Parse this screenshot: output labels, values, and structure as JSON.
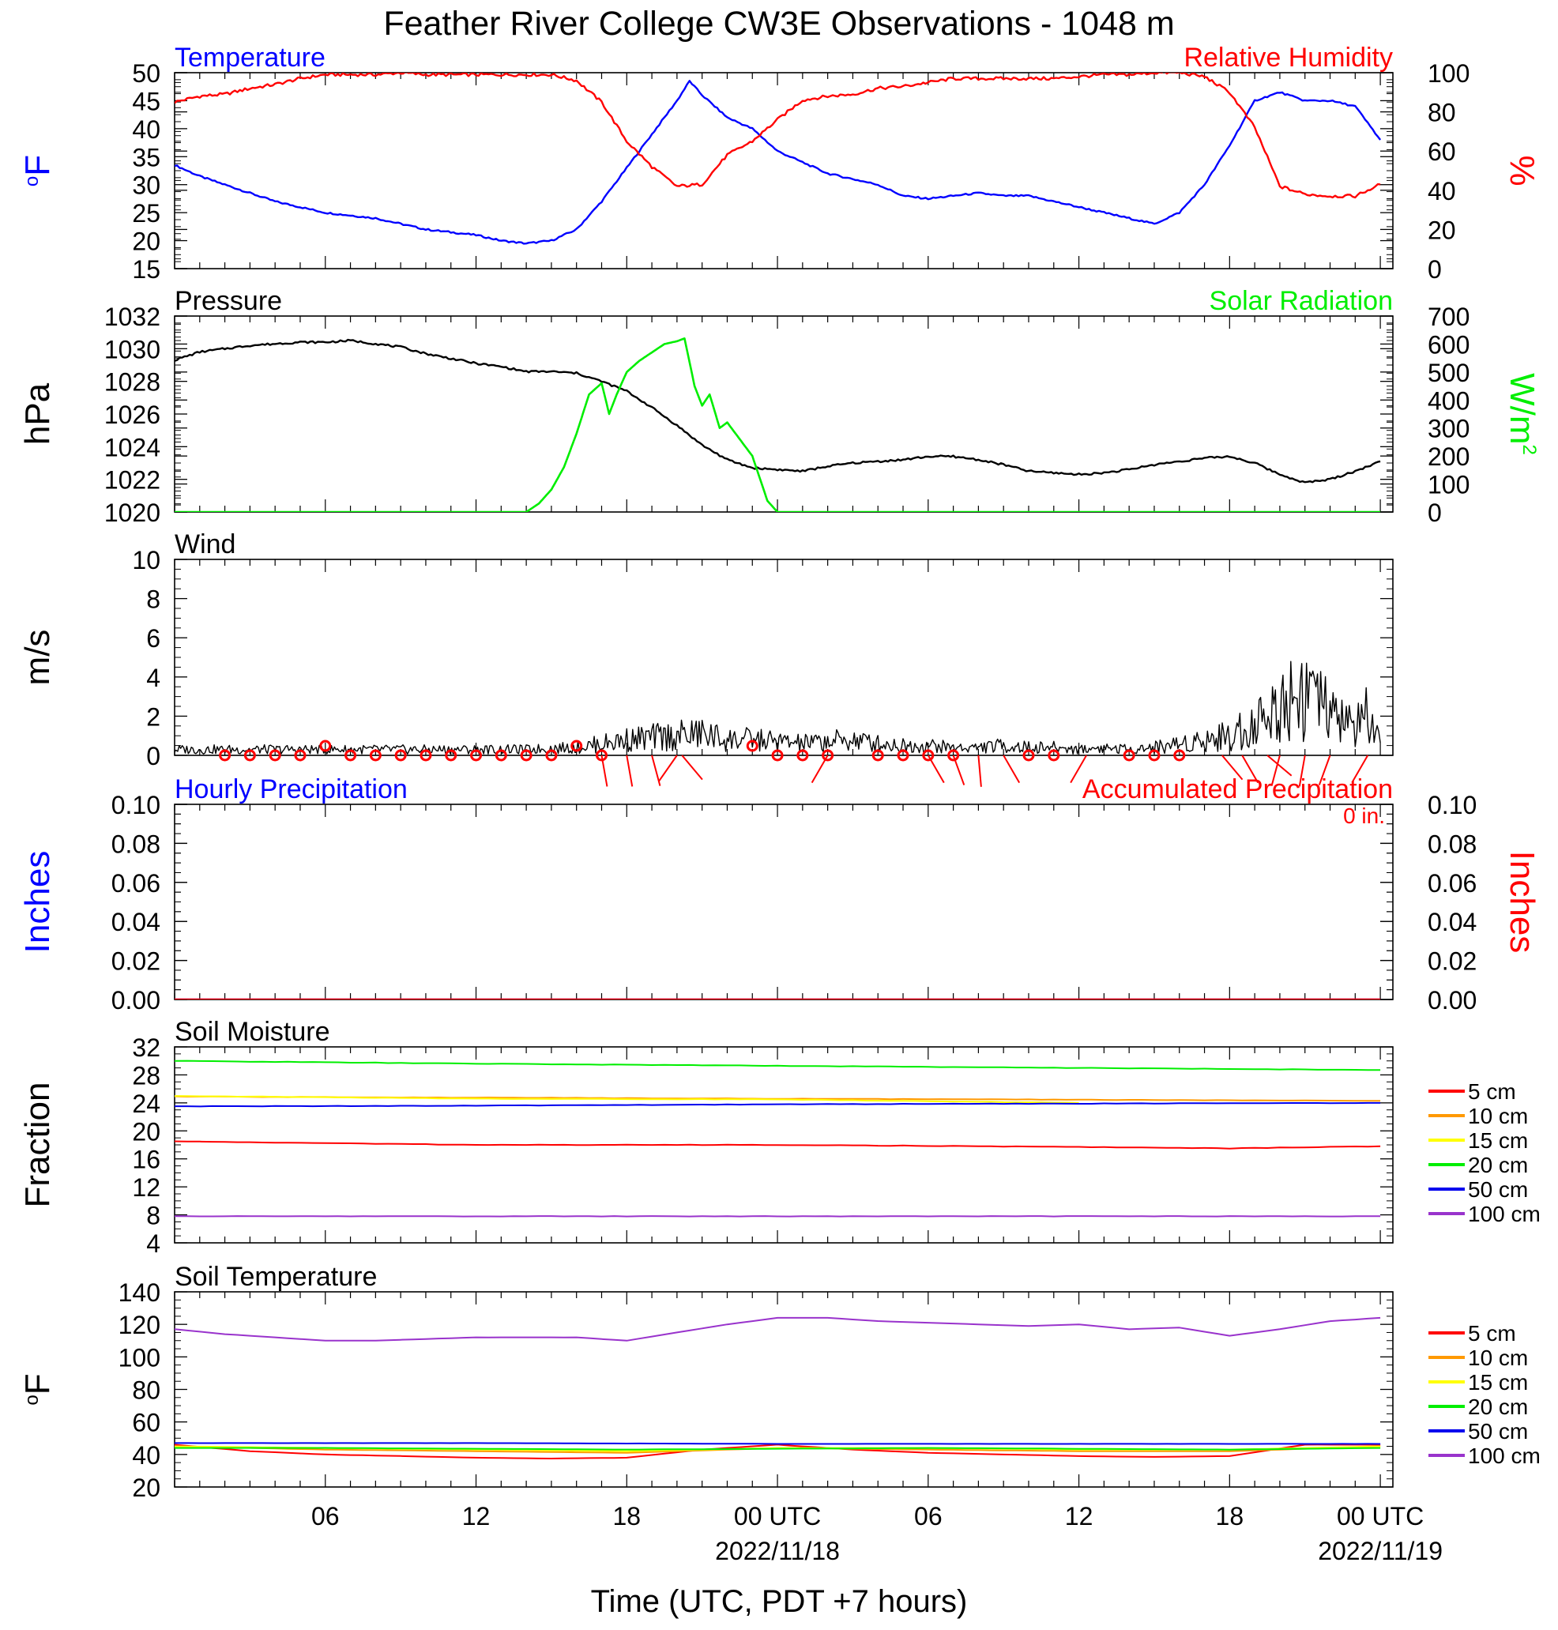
{
  "title": "Feather River College CW3E Observations - 1048 m",
  "xlabel": "Time (UTC, PDT +7 hours)",
  "x_ticks": [
    {
      "h": 6,
      "label": "06",
      "date": ""
    },
    {
      "h": 12,
      "label": "12",
      "date": ""
    },
    {
      "h": 18,
      "label": "18",
      "date": ""
    },
    {
      "h": 24,
      "label": "00 UTC",
      "date": "2022/11/18"
    },
    {
      "h": 30,
      "label": "06",
      "date": ""
    },
    {
      "h": 36,
      "label": "12",
      "date": ""
    },
    {
      "h": 42,
      "label": "18",
      "date": ""
    },
    {
      "h": 48,
      "label": "00 UTC",
      "date": "2022/11/19"
    }
  ],
  "colors": {
    "temperature": "#0000ff",
    "humidity": "#ff0000",
    "pressure": "#000000",
    "solar": "#00ee00",
    "wind": "#000000",
    "barb": "#ff0000",
    "precip_left": "#0000ff",
    "precip_right": "#ff0000"
  },
  "soil_legend": [
    {
      "label": "5 cm",
      "color": "#ff0000"
    },
    {
      "label": "10 cm",
      "color": "#ff9900"
    },
    {
      "label": "15 cm",
      "color": "#ffff00"
    },
    {
      "label": "20 cm",
      "color": "#00ee00"
    },
    {
      "label": "50 cm",
      "color": "#0000ee"
    },
    {
      "label": "100 cm",
      "color": "#9933cc"
    }
  ],
  "chart_data": [
    {
      "type": "line",
      "panel": "temperature_humidity",
      "left_title": "Temperature",
      "right_title": "Relative Humidity",
      "ylabel_left": "oF",
      "ylabel_right": "%",
      "ylim_left": [
        15,
        50
      ],
      "yticks_left": [
        15,
        20,
        25,
        30,
        35,
        40,
        45,
        50
      ],
      "ylim_right": [
        0,
        100
      ],
      "yticks_right": [
        0,
        20,
        40,
        60,
        80,
        100
      ],
      "series": [
        {
          "name": "Temperature",
          "axis": "left",
          "color_key": "temperature",
          "x": [
            0,
            1,
            2,
            3,
            4,
            5,
            6,
            7,
            8,
            9,
            10,
            11,
            12,
            13,
            14,
            15,
            16,
            17,
            18,
            19,
            20,
            20.5,
            21,
            22,
            23,
            24,
            25,
            26,
            27,
            28,
            29,
            30,
            31,
            32,
            33,
            34,
            35,
            36,
            37,
            38,
            39,
            40,
            41,
            42,
            43,
            44,
            45,
            46,
            47,
            48
          ],
          "y": [
            33.5,
            31.5,
            30,
            28.5,
            27,
            26,
            25,
            24.5,
            24,
            23,
            22,
            21.5,
            21,
            20,
            19.5,
            20,
            22,
            27,
            33,
            39,
            45,
            48.5,
            46,
            42,
            40,
            36,
            34,
            32,
            31,
            30,
            28,
            27.5,
            28,
            28.5,
            28,
            28,
            27,
            26,
            25,
            24,
            23,
            25,
            30,
            37,
            45,
            46.5,
            45,
            45,
            44,
            38
          ]
        },
        {
          "name": "Relative Humidity",
          "axis": "right",
          "color_key": "humidity",
          "x": [
            0,
            1,
            2,
            3,
            4,
            5,
            6,
            7,
            8,
            9,
            10,
            11,
            12,
            13,
            14,
            15,
            16,
            17,
            18,
            19,
            20,
            21,
            22,
            23,
            24,
            25,
            26,
            27,
            28,
            29,
            30,
            31,
            32,
            33,
            34,
            35,
            36,
            37,
            38,
            39,
            40,
            41,
            42,
            43,
            44,
            45,
            46,
            47,
            48
          ],
          "y": [
            85,
            88,
            89,
            92,
            94,
            97,
            99,
            99,
            99,
            100,
            99,
            99,
            99,
            99,
            99,
            99,
            96,
            85,
            65,
            52,
            42,
            43,
            58,
            65,
            76,
            86,
            88,
            89,
            92,
            93,
            95,
            97,
            97,
            97,
            97,
            97,
            98,
            99,
            99,
            100,
            100,
            98,
            90,
            72,
            42,
            38,
            37,
            37,
            43
          ]
        }
      ]
    },
    {
      "type": "line",
      "panel": "pressure_solar",
      "left_title": "Pressure",
      "right_title": "Solar Radiation",
      "ylabel_left": "hPa",
      "ylabel_right": "W/m",
      "ylabel_right_sup": "2",
      "ylim_left": [
        1020,
        1032
      ],
      "yticks_left": [
        1020,
        1022,
        1024,
        1026,
        1028,
        1030,
        1032
      ],
      "ylim_right": [
        0,
        700
      ],
      "yticks_right": [
        0,
        100,
        200,
        300,
        400,
        500,
        600,
        700
      ],
      "series": [
        {
          "name": "Pressure",
          "axis": "left",
          "color_key": "pressure",
          "x": [
            0,
            1,
            2,
            3,
            4,
            5,
            6,
            7,
            8,
            9,
            10,
            11,
            12,
            13,
            14,
            15,
            16,
            17,
            18,
            19,
            20,
            21,
            22,
            23,
            24,
            25,
            26,
            27,
            28,
            29,
            30,
            31,
            32,
            33,
            34,
            35,
            36,
            37,
            38,
            39,
            40,
            41,
            42,
            43,
            44,
            45,
            46,
            47,
            48
          ],
          "y": [
            1029.3,
            1029.8,
            1030.0,
            1030.2,
            1030.3,
            1030.4,
            1030.4,
            1030.5,
            1030.3,
            1030.1,
            1029.7,
            1029.4,
            1029.1,
            1028.9,
            1028.6,
            1028.6,
            1028.5,
            1028.0,
            1027.4,
            1026.4,
            1025.3,
            1024.1,
            1023.2,
            1022.7,
            1022.6,
            1022.5,
            1022.8,
            1023.0,
            1023.1,
            1023.2,
            1023.4,
            1023.4,
            1023.2,
            1022.9,
            1022.5,
            1022.4,
            1022.3,
            1022.4,
            1022.6,
            1022.9,
            1023.1,
            1023.3,
            1023.4,
            1023.0,
            1022.3,
            1021.8,
            1022.0,
            1022.5,
            1023.1
          ]
        },
        {
          "name": "Solar Radiation",
          "axis": "right",
          "color_key": "solar",
          "x": [
            0,
            14,
            14.5,
            15,
            15.5,
            16,
            16.5,
            17,
            17.3,
            17.6,
            18,
            18.5,
            19,
            19.5,
            20,
            20.3,
            20.7,
            21,
            21.3,
            21.7,
            22,
            22.5,
            23,
            23.3,
            23.6,
            24,
            48
          ],
          "y": [
            0,
            0,
            30,
            80,
            160,
            280,
            420,
            460,
            350,
            420,
            500,
            540,
            570,
            600,
            610,
            620,
            450,
            380,
            420,
            300,
            320,
            260,
            200,
            120,
            40,
            0,
            0
          ]
        }
      ]
    },
    {
      "type": "line",
      "panel": "wind",
      "left_title": "Wind",
      "ylabel_left": "m/s",
      "ylim_left": [
        0,
        10
      ],
      "yticks_left": [
        0,
        2,
        4,
        6,
        8,
        10
      ],
      "series": [
        {
          "name": "Wind",
          "axis": "left",
          "color_key": "wind",
          "x": [
            0,
            2,
            4,
            6,
            8,
            10,
            12,
            14,
            16,
            17,
            18,
            19,
            20,
            21,
            22,
            23,
            24,
            25,
            26,
            27,
            28,
            29,
            30,
            31,
            32,
            33,
            34,
            35,
            36,
            37,
            38,
            39,
            40,
            41,
            42,
            43,
            44,
            44.5,
            45,
            45.5,
            46,
            47,
            47.5,
            48
          ],
          "y": [
            0.3,
            0.3,
            0.3,
            0.3,
            0.3,
            0.3,
            0.3,
            0.3,
            0.4,
            0.6,
            0.8,
            0.9,
            1.0,
            1.1,
            0.8,
            0.8,
            0.7,
            0.6,
            0.7,
            0.8,
            0.6,
            0.5,
            0.5,
            0.4,
            0.4,
            0.5,
            0.4,
            0.4,
            0.3,
            0.4,
            0.3,
            0.4,
            0.6,
            0.8,
            1.0,
            1.6,
            2.5,
            3.2,
            3.4,
            2.8,
            2.0,
            1.5,
            2.0,
            0.5
          ]
        }
      ],
      "calm_hours": [
        2,
        3,
        4,
        5,
        6,
        7,
        8,
        9,
        10,
        11,
        12,
        13,
        14,
        15,
        16,
        17,
        23,
        24,
        25,
        26,
        28,
        29,
        30,
        31,
        34,
        35,
        38,
        39,
        40
      ],
      "barbs": [
        {
          "h": 17.0,
          "dir": 350
        },
        {
          "h": 18.0,
          "dir": 350
        },
        {
          "h": 19.0,
          "dir": 345
        },
        {
          "h": 20.0,
          "dir": 35
        },
        {
          "h": 20.2,
          "dir": 320
        },
        {
          "h": 26.0,
          "dir": 30
        },
        {
          "h": 30.0,
          "dir": 330
        },
        {
          "h": 31.0,
          "dir": 340
        },
        {
          "h": 32.0,
          "dir": 355
        },
        {
          "h": 33.0,
          "dir": 330
        },
        {
          "h": 36.3,
          "dir": 30
        },
        {
          "h": 41.7,
          "dir": 320
        },
        {
          "h": 42.5,
          "dir": 330
        },
        {
          "h": 43.5,
          "dir": 310
        },
        {
          "h": 44.0,
          "dir": 15
        },
        {
          "h": 45.0,
          "dir": 10
        },
        {
          "h": 46.0,
          "dir": 20
        },
        {
          "h": 47.5,
          "dir": 30
        }
      ]
    },
    {
      "type": "line",
      "panel": "precipitation",
      "left_title": "Hourly Precipitation",
      "right_title": "Accumulated Precipitation",
      "right_note": "0 in.",
      "ylabel_left": "Inches",
      "ylabel_right": "Inches",
      "ylim_left": [
        0,
        0.1
      ],
      "yticks_left": [
        "0.00",
        "0.02",
        "0.04",
        "0.06",
        "0.08",
        "0.10"
      ],
      "ylim_right": [
        0,
        0.1
      ],
      "yticks_right": [
        "0.00",
        "0.02",
        "0.04",
        "0.06",
        "0.08",
        "0.10"
      ],
      "series": [
        {
          "name": "Hourly Precipitation",
          "axis": "left",
          "color_key": "precip_left",
          "x": [
            0,
            48
          ],
          "y": [
            0,
            0
          ]
        },
        {
          "name": "Accumulated Precipitation",
          "axis": "right",
          "color_key": "precip_right",
          "x": [
            0,
            48
          ],
          "y": [
            0,
            0
          ]
        }
      ]
    },
    {
      "type": "line",
      "panel": "soil_moisture",
      "left_title": "Soil Moisture",
      "ylabel_left": "Fraction",
      "ylim_left": [
        4,
        32
      ],
      "yticks_left": [
        4,
        8,
        12,
        16,
        20,
        24,
        28,
        32
      ],
      "legend": "right",
      "series": [
        {
          "name": "5 cm",
          "color_idx": 0,
          "x": [
            0,
            12,
            24,
            36,
            42,
            48
          ],
          "y": [
            18.5,
            18.0,
            18.0,
            17.7,
            17.5,
            17.8
          ]
        },
        {
          "name": "10 cm",
          "color_idx": 1,
          "x": [
            0,
            48
          ],
          "y": [
            24.9,
            24.3
          ]
        },
        {
          "name": "15 cm",
          "color_idx": 2,
          "x": [
            0,
            12,
            24,
            36
          ],
          "y": [
            25.0,
            24.6,
            24.5,
            24.0
          ]
        },
        {
          "name": "20 cm",
          "color_idx": 3,
          "x": [
            0,
            12,
            24,
            36,
            48
          ],
          "y": [
            30.0,
            29.6,
            29.3,
            29.0,
            28.7
          ]
        },
        {
          "name": "50 cm",
          "color_idx": 4,
          "x": [
            0,
            12,
            24,
            36,
            48
          ],
          "y": [
            23.5,
            23.6,
            23.8,
            23.9,
            24.0
          ]
        },
        {
          "name": "100 cm",
          "color_idx": 5,
          "x": [
            0,
            48
          ],
          "y": [
            7.8,
            7.8
          ]
        }
      ]
    },
    {
      "type": "line",
      "panel": "soil_temperature",
      "left_title": "Soil Temperature",
      "ylabel_left": "oF",
      "ylim_left": [
        20,
        140
      ],
      "yticks_left": [
        20,
        40,
        60,
        80,
        100,
        120,
        140
      ],
      "legend": "right",
      "series": [
        {
          "name": "5 cm",
          "color_idx": 0,
          "x": [
            0,
            3,
            6,
            9,
            12,
            15,
            18,
            21,
            24,
            27,
            30,
            33,
            36,
            39,
            42,
            45,
            48
          ],
          "y": [
            46,
            42,
            40,
            39,
            38,
            37.5,
            38,
            43,
            46,
            43,
            41,
            40,
            39,
            38.5,
            39,
            46,
            46
          ]
        },
        {
          "name": "10 cm",
          "color_idx": 1,
          "x": [
            0,
            6,
            12,
            18,
            24,
            30,
            36,
            42,
            48
          ],
          "y": [
            45,
            43,
            42,
            41,
            44,
            43,
            42,
            42,
            45
          ]
        },
        {
          "name": "15 cm",
          "color_idx": 2,
          "x": [
            0,
            6,
            12,
            18,
            24,
            30,
            36,
            42,
            48
          ],
          "y": [
            45,
            44,
            43,
            42,
            44,
            44,
            43,
            43,
            45
          ]
        },
        {
          "name": "20 cm",
          "color_idx": 3,
          "x": [
            0,
            6,
            12,
            18,
            24,
            30,
            36,
            42,
            48
          ],
          "y": [
            44,
            44,
            43.5,
            43,
            43.5,
            44,
            43.5,
            43,
            44
          ]
        },
        {
          "name": "50 cm",
          "color_idx": 4,
          "x": [
            0,
            12,
            24,
            36,
            48
          ],
          "y": [
            47,
            47,
            46.5,
            46.5,
            46.5
          ]
        },
        {
          "name": "100 cm",
          "color_idx": 5,
          "x": [
            0,
            2,
            4,
            6,
            8,
            10,
            12,
            14,
            16,
            18,
            20,
            22,
            24,
            26,
            28,
            30,
            32,
            34,
            36,
            38,
            40,
            42,
            44,
            46,
            48
          ],
          "y": [
            117,
            114,
            112,
            110,
            110,
            111,
            112,
            112,
            112,
            110,
            115,
            120,
            124,
            124,
            122,
            121,
            120,
            119,
            120,
            117,
            118,
            113,
            117,
            122,
            124
          ]
        }
      ]
    }
  ]
}
